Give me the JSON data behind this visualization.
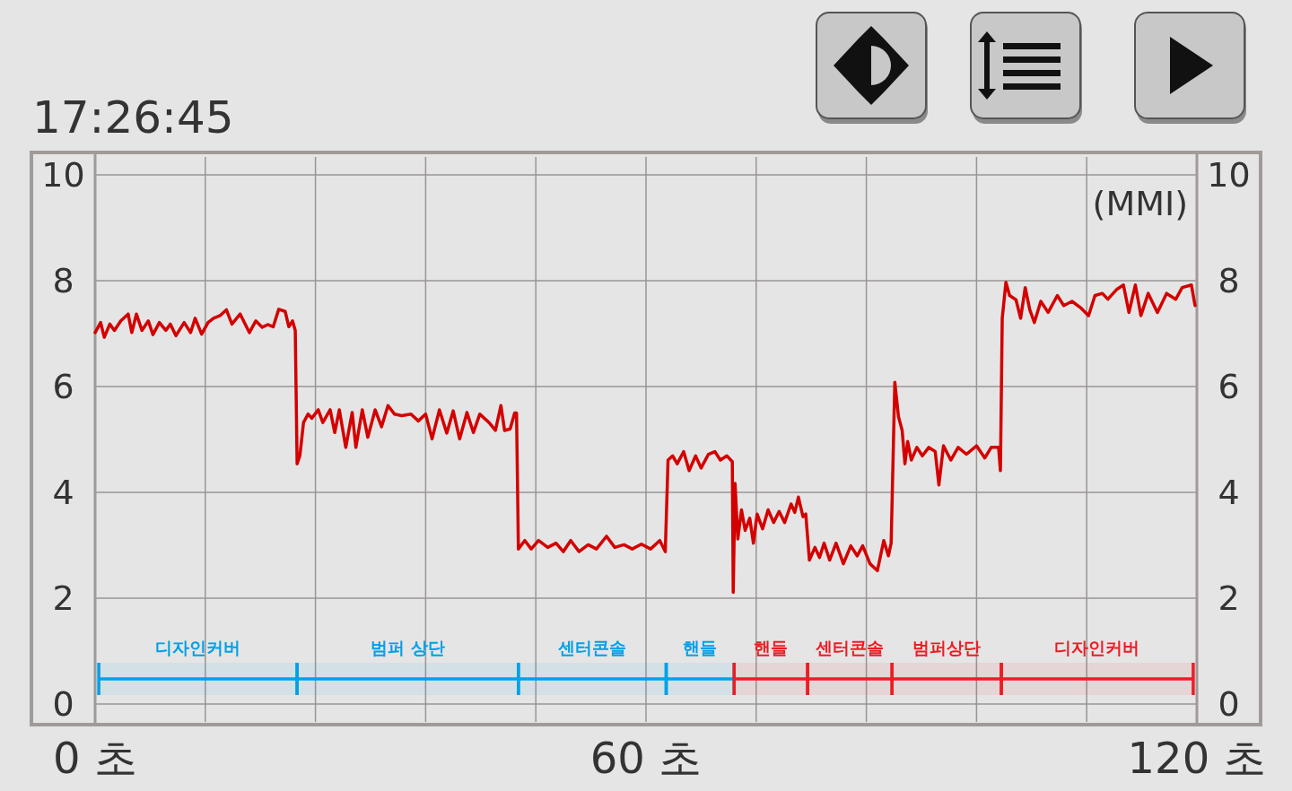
{
  "chart_data": {
    "type": "line",
    "title": "17:26:45",
    "annotations": [
      "(MMI)"
    ],
    "xlim": [
      0,
      120
    ],
    "xticks": [
      {
        "value": 0,
        "label": "0 초"
      },
      {
        "value": 12,
        "label": null
      },
      {
        "value": 24,
        "label": null
      },
      {
        "value": 36,
        "label": null
      },
      {
        "value": 48,
        "label": null
      },
      {
        "value": 60,
        "label": "60 초"
      },
      {
        "value": 72,
        "label": null
      },
      {
        "value": 84,
        "label": null
      },
      {
        "value": 96,
        "label": null
      },
      {
        "value": 108,
        "label": null
      },
      {
        "value": 120,
        "label": "120 초"
      }
    ],
    "ylim": [
      0,
      10
    ],
    "yticks": [
      0,
      2,
      4,
      6,
      8,
      10
    ],
    "y2lim": [
      0,
      10
    ],
    "y2ticks": [
      0,
      2,
      4,
      6,
      8,
      10
    ],
    "grid": true,
    "marker": "none",
    "line_style": "solid",
    "bands": [
      {
        "axis": "x",
        "from": 0.4,
        "to": 22.0,
        "label": "디자인커버",
        "color": "#00a0e9"
      },
      {
        "axis": "x",
        "from": 22.0,
        "to": 46.1,
        "label": "범퍼 상단",
        "color": "#00a0e9"
      },
      {
        "axis": "x",
        "from": 46.1,
        "to": 62.2,
        "label": "센터콘솔",
        "color": "#00a0e9"
      },
      {
        "axis": "x",
        "from": 62.2,
        "to": 69.6,
        "label": "핸들",
        "color": "#00a0e9"
      },
      {
        "axis": "x",
        "from": 69.6,
        "to": 77.6,
        "label": "핸들",
        "color": "#ee1c24"
      },
      {
        "axis": "x",
        "from": 77.6,
        "to": 86.8,
        "label": "센터콘솔",
        "color": "#ee1c24"
      },
      {
        "axis": "x",
        "from": 86.8,
        "to": 98.7,
        "label": "범퍼상단",
        "color": "#ee1c24"
      },
      {
        "axis": "x",
        "from": 98.7,
        "to": 119.6,
        "label": "디자인커버",
        "color": "#ee1c24"
      }
    ],
    "series": [
      {
        "color": "#d40000",
        "x": [
          0,
          0.6,
          1.0,
          1.6,
          2.1,
          2.8,
          3.6,
          4.0,
          4.5,
          5.1,
          5.8,
          6.3,
          7.0,
          7.7,
          8.2,
          8.8,
          9.7,
          10.4,
          10.9,
          11.6,
          12.3,
          12.9,
          13.6,
          14.3,
          14.9,
          15.8,
          16.8,
          17.5,
          18.2,
          18.8,
          19.4,
          20.0,
          20.7,
          21.1,
          21.5,
          21.8,
          22.0,
          22.3,
          22.7,
          23.2,
          23.6,
          24.3,
          24.8,
          25.6,
          26.1,
          26.6,
          27.3,
          28.0,
          28.4,
          29.1,
          29.7,
          30.5,
          31.2,
          31.9,
          32.6,
          33.4,
          34.4,
          35.2,
          36.0,
          36.7,
          37.5,
          38.3,
          39.0,
          39.7,
          40.5,
          41.2,
          41.9,
          42.9,
          43.6,
          44.2,
          44.6,
          45.2,
          45.7,
          45.9,
          46.1,
          46.8,
          47.5,
          48.3,
          49.3,
          50.2,
          51.0,
          51.8,
          52.7,
          53.7,
          54.6,
          55.7,
          56.6,
          57.6,
          58.5,
          59.5,
          60.5,
          61.5,
          62.1,
          62.4,
          62.9,
          63.4,
          64.1,
          64.7,
          65.4,
          66.0,
          66.8,
          67.5,
          68.1,
          68.8,
          69.4,
          69.5,
          69.7,
          70.0,
          70.4,
          70.8,
          71.3,
          71.7,
          72.1,
          72.7,
          73.3,
          73.9,
          74.5,
          75.1,
          75.8,
          76.2,
          76.6,
          77.1,
          77.4,
          77.8,
          78.4,
          78.9,
          79.4,
          80.0,
          80.7,
          81.5,
          82.3,
          83.0,
          83.6,
          84.4,
          85.2,
          85.9,
          86.4,
          86.7,
          87.1,
          87.5,
          87.9,
          88.2,
          88.5,
          88.9,
          89.5,
          90.1,
          90.8,
          91.5,
          91.9,
          92.4,
          93.2,
          94.0,
          94.9,
          96.0,
          96.9,
          97.6,
          98.4,
          98.6,
          98.8,
          99.2,
          99.6,
          100.3,
          100.8,
          101.3,
          101.8,
          102.3,
          103.0,
          103.8,
          104.8,
          105.5,
          106.4,
          107.4,
          108.2,
          108.9,
          109.7,
          110.3,
          111.3,
          112.0,
          112.6,
          113.3,
          113.9,
          114.7,
          115.7,
          116.7,
          117.7,
          118.4,
          119.4,
          119.8
        ],
        "values": [
          7.02,
          7.21,
          6.93,
          7.18,
          7.06,
          7.24,
          7.37,
          7.02,
          7.37,
          7.06,
          7.24,
          6.98,
          7.21,
          7.06,
          7.18,
          6.96,
          7.21,
          7.02,
          7.29,
          6.99,
          7.21,
          7.29,
          7.34,
          7.45,
          7.18,
          7.37,
          7.02,
          7.24,
          7.12,
          7.17,
          7.13,
          7.46,
          7.42,
          7.13,
          7.24,
          7.06,
          4.54,
          4.69,
          5.32,
          5.48,
          5.4,
          5.56,
          5.32,
          5.56,
          5.13,
          5.56,
          4.85,
          5.51,
          4.85,
          5.56,
          5.04,
          5.56,
          5.24,
          5.64,
          5.48,
          5.45,
          5.48,
          5.35,
          5.48,
          5.01,
          5.56,
          5.12,
          5.54,
          5.01,
          5.51,
          5.13,
          5.48,
          5.32,
          5.17,
          5.64,
          5.17,
          5.2,
          5.5,
          5.5,
          2.93,
          3.09,
          2.93,
          3.09,
          2.96,
          3.04,
          2.88,
          3.09,
          2.88,
          3.01,
          2.93,
          3.17,
          2.96,
          3.01,
          2.93,
          3.02,
          2.93,
          3.09,
          2.88,
          4.61,
          4.69,
          4.54,
          4.77,
          4.41,
          4.69,
          4.46,
          4.72,
          4.77,
          4.61,
          4.69,
          4.58,
          2.11,
          4.17,
          3.12,
          3.67,
          3.28,
          3.51,
          3.04,
          3.59,
          3.31,
          3.67,
          3.43,
          3.64,
          3.43,
          3.78,
          3.62,
          3.91,
          3.54,
          3.59,
          2.72,
          2.96,
          2.77,
          3.04,
          2.72,
          3.04,
          2.65,
          2.99,
          2.8,
          2.99,
          2.65,
          2.52,
          3.09,
          2.8,
          3.04,
          6.08,
          5.43,
          5.17,
          4.54,
          4.96,
          4.61,
          4.85,
          4.69,
          4.85,
          4.77,
          4.14,
          4.88,
          4.61,
          4.85,
          4.72,
          4.88,
          4.65,
          4.85,
          4.85,
          4.41,
          7.29,
          7.97,
          7.72,
          7.64,
          7.29,
          7.87,
          7.45,
          7.21,
          7.61,
          7.4,
          7.72,
          7.53,
          7.61,
          7.48,
          7.34,
          7.72,
          7.76,
          7.65,
          7.84,
          7.92,
          7.4,
          7.92,
          7.34,
          7.76,
          7.4,
          7.76,
          7.65,
          7.87,
          7.92,
          7.53
        ]
      }
    ]
  }
}
